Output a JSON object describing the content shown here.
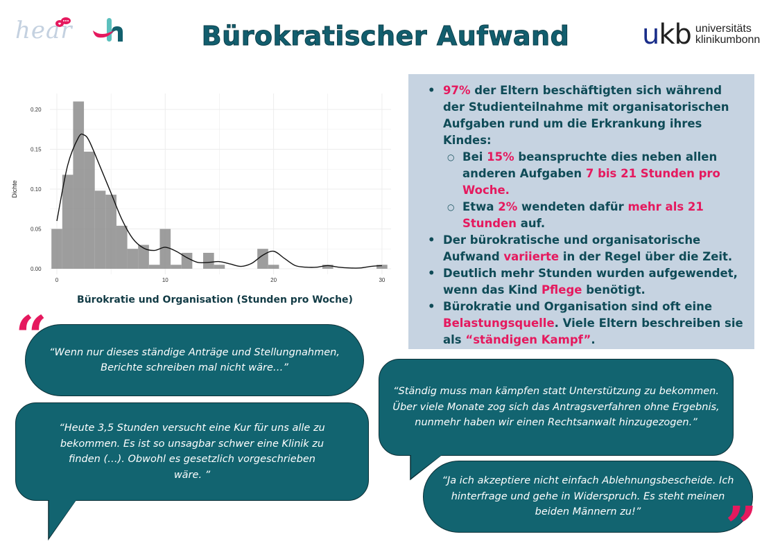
{
  "header": {
    "title": "Bürokratischer Aufwand",
    "logo_hear": "hear",
    "logo_h": "h",
    "ukb_mark_u": "u",
    "ukb_mark_rest": "kb",
    "ukb_line1": "universitäts",
    "ukb_line2_a": "klinikum",
    "ukb_line2_b": "bonn"
  },
  "colors": {
    "teal_dark": "#125e6e",
    "bubble_teal": "#126470",
    "accent_pink": "#e5195e",
    "info_bg": "#c6d3e1",
    "bar_gray": "#8c8c8c"
  },
  "chart_data": {
    "type": "bar",
    "subtype": "histogram_with_density",
    "title": "",
    "xlabel": "Bürokratie und Organisation (Stunden pro Woche)",
    "ylabel": "Dichte",
    "xlim": [
      -1,
      31
    ],
    "ylim": [
      0,
      0.22
    ],
    "xticks": [
      0,
      10,
      20,
      30
    ],
    "yticks": [
      "0.00",
      "0.05",
      "0.10",
      "0.15",
      "0.20"
    ],
    "grid": true,
    "bin_width": 1,
    "categories": [
      0,
      1,
      2,
      3,
      4,
      5,
      6,
      7,
      8,
      9,
      10,
      11,
      12,
      13,
      14,
      15,
      16,
      17,
      18,
      19,
      20,
      21,
      22,
      23,
      24,
      25,
      26,
      27,
      28,
      29,
      30
    ],
    "values": [
      0.05,
      0.118,
      0.21,
      0.147,
      0.098,
      0.093,
      0.054,
      0.025,
      0.03,
      0.005,
      0.05,
      0.005,
      0.02,
      0,
      0.02,
      0.005,
      0,
      0,
      0,
      0.025,
      0.005,
      0,
      0,
      0,
      0,
      0.005,
      0,
      0,
      0,
      0,
      0.005
    ],
    "density_curve": {
      "x": [
        0,
        1,
        2,
        2.5,
        3,
        4,
        5,
        6,
        7,
        8,
        9,
        10,
        11,
        12,
        13,
        14,
        15,
        16,
        17,
        18,
        19,
        20,
        21,
        22,
        23,
        24,
        25,
        26,
        27,
        28,
        29,
        30
      ],
      "y": [
        0.06,
        0.13,
        0.165,
        0.168,
        0.16,
        0.128,
        0.095,
        0.062,
        0.038,
        0.026,
        0.023,
        0.027,
        0.022,
        0.014,
        0.008,
        0.008,
        0.009,
        0.006,
        0.003,
        0.007,
        0.017,
        0.022,
        0.013,
        0.004,
        0.002,
        0.002,
        0.004,
        0.002,
        0.001,
        0.001,
        0.003,
        0.004
      ]
    }
  },
  "info": {
    "b1": {
      "hl1": "97%",
      "t1": " der Eltern beschäftigten sich während der Studienteilnahme mit organisatorischen Aufgaben rund um die Erkrankung ihres Kindes:"
    },
    "s1": {
      "t1": "Bei ",
      "hl1": "15%",
      "t2": " beanspruchte dies neben allen anderen Aufgaben ",
      "hl2": "7 bis 21 Stunden pro Woche."
    },
    "s2": {
      "t1": "Etwa ",
      "hl1": "2%",
      "t2": " wendeten dafür ",
      "hl2": "mehr als 21 Stunden",
      "t3": " auf."
    },
    "b2": {
      "t1": "Der bürokratische und organisatorische Aufwand ",
      "hl1": "variierte",
      "t2": " in der Regel über die Zeit."
    },
    "b3": {
      "t1": "Deutlich mehr Stunden wurden aufgewendet, wenn das Kind ",
      "hl1": "Pflege",
      "t2": " benötigt."
    },
    "b4": {
      "t1": "Bürokratie und Organisation sind oft eine ",
      "hl1": "Belastungsquelle",
      "t2": ". Viele Eltern beschreiben sie als ",
      "hl2": "“ständigen Kampf”",
      "t3": "."
    }
  },
  "quotes": [
    "“Wenn nur dieses ständige Anträge und Stellungnahmen, Berichte schreiben mal nicht wäre…”",
    "“Heute 3,5 Stunden versucht eine Kur für uns alle zu bekommen. Es ist so unsagbar schwer eine Klinik zu finden (…). Obwohl es gesetzlich vorgeschrieben wäre. ”",
    "“Ständig muss man kämpfen statt Unterstützung zu bekommen. Über viele Monate zog sich das Antragsverfahren ohne Ergebnis, nunmehr haben wir einen Rechtsanwalt hinzugezogen.”",
    "“Ja ich akzeptiere nicht einfach Ablehnungsbescheide. Ich hinterfrage und gehe in Widerspruch. Es steht meinen beiden Männern zu!”"
  ],
  "quote_marks": {
    "open": "“",
    "close": "”"
  }
}
